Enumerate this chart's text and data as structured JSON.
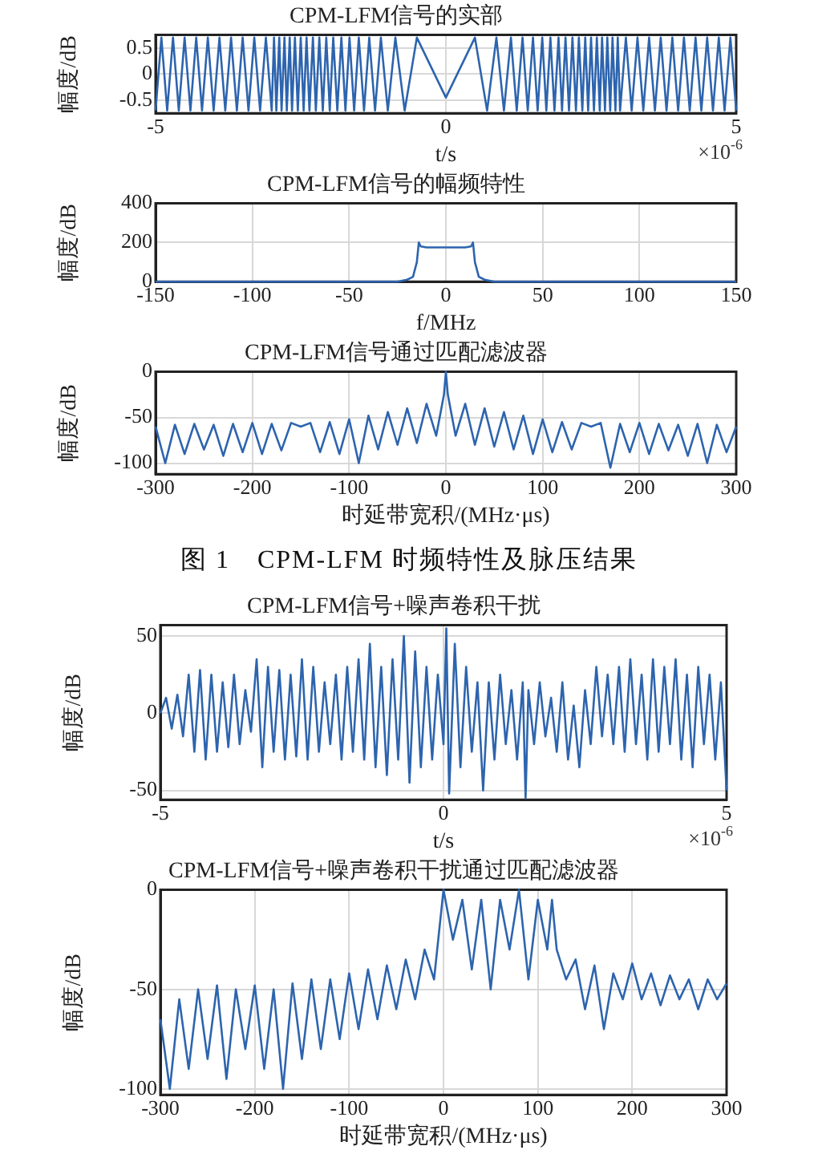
{
  "chart_data": [
    {
      "type": "line",
      "title": "CPM-LFM信号的实部",
      "xlabel": "t/s",
      "ylabel": "幅度/dB",
      "annotations": [
        "×10$^{-6}$"
      ],
      "color": "#2d64ae",
      "grid": true,
      "marker": "none",
      "legend": false,
      "xlim": [
        -5,
        5
      ],
      "xticks": [
        -5,
        0,
        5
      ],
      "ylim": [
        -0.75,
        0.75
      ],
      "yticks": [
        -0.5,
        0,
        0.5
      ],
      "x": [
        -5,
        -4.9,
        -4.8,
        -4.7,
        -4.6,
        -4.5,
        -4.4,
        -4.3,
        -4.2,
        -4.1,
        -4,
        -3.9,
        -3.8,
        -3.7,
        -3.6,
        -3.5,
        -3.4,
        -3.3,
        -3.2,
        -3.1,
        -3,
        -2.96,
        -2.92,
        -2.87,
        -2.83,
        -2.78,
        -2.74,
        -2.69,
        -2.65,
        -2.6,
        -2.55,
        -2.5,
        -2.45,
        -2.4,
        -2.35,
        -2.29,
        -2.24,
        -2.18,
        -2.12,
        -2.06,
        -2,
        -1.94,
        -1.87,
        -1.8,
        -1.73,
        -1.66,
        -1.58,
        -1.5,
        -1.41,
        -1.32,
        -1.22,
        -1.12,
        -1,
        -0.87,
        -0.71,
        -0.5,
        0,
        0.5,
        0.71,
        0.87,
        1,
        1.12,
        1.22,
        1.32,
        1.41,
        1.5,
        1.58,
        1.66,
        1.73,
        1.8,
        1.87,
        1.94,
        2,
        2.06,
        2.12,
        2.18,
        2.24,
        2.29,
        2.35,
        2.4,
        2.45,
        2.5,
        2.55,
        2.6,
        2.65,
        2.69,
        2.74,
        2.78,
        2.83,
        2.87,
        2.92,
        2.96,
        3,
        3.1,
        3.2,
        3.3,
        3.4,
        3.5,
        3.6,
        3.7,
        3.8,
        3.9,
        4,
        4.1,
        4.2,
        4.3,
        4.4,
        4.5,
        4.6,
        4.7,
        4.8,
        4.9,
        5
      ],
      "values": [
        -0.7,
        0.7,
        -0.7,
        0.7,
        -0.7,
        0.7,
        -0.7,
        0.7,
        -0.7,
        0.7,
        -0.7,
        0.7,
        -0.7,
        0.7,
        -0.7,
        0.7,
        -0.7,
        0.7,
        -0.7,
        0.7,
        -0.7,
        0.7,
        -0.7,
        0.7,
        -0.7,
        0.7,
        -0.7,
        0.7,
        -0.7,
        0.7,
        -0.7,
        0.7,
        -0.7,
        0.7,
        -0.7,
        0.7,
        -0.7,
        0.7,
        -0.7,
        0.7,
        -0.7,
        0.7,
        -0.7,
        0.7,
        -0.7,
        0.7,
        -0.7,
        0.7,
        -0.7,
        0.7,
        -0.7,
        0.7,
        -0.7,
        0.7,
        -0.7,
        0.7,
        -0.45,
        0.7,
        -0.7,
        0.7,
        -0.7,
        0.7,
        -0.7,
        0.7,
        -0.7,
        0.7,
        -0.7,
        0.7,
        -0.7,
        0.7,
        -0.7,
        0.7,
        -0.7,
        0.7,
        -0.7,
        0.7,
        -0.7,
        0.7,
        -0.7,
        0.7,
        -0.7,
        0.7,
        -0.7,
        0.7,
        -0.7,
        0.7,
        -0.7,
        0.7,
        -0.7,
        0.7,
        -0.7,
        0.7,
        -0.7,
        0.7,
        -0.7,
        0.7,
        -0.7,
        0.7,
        -0.7,
        0.7,
        -0.7,
        0.7,
        -0.7,
        0.7,
        -0.7,
        0.7,
        -0.7,
        0.7,
        -0.7,
        0.7,
        -0.7,
        0.7,
        -0.7
      ]
    },
    {
      "type": "line",
      "title": "CPM-LFM信号的幅频特性",
      "xlabel": "f/MHz",
      "ylabel": "幅度/dB",
      "color": "#2d64ae",
      "grid": true,
      "marker": "none",
      "legend": false,
      "xlim": [
        -150,
        150
      ],
      "xticks": [
        -150,
        -100,
        -50,
        0,
        50,
        100,
        150
      ],
      "ylim": [
        0,
        400
      ],
      "yticks": [
        0,
        200,
        400
      ],
      "x": [
        -150,
        -25,
        -20,
        -17,
        -15,
        -14,
        -13,
        -10,
        -5,
        0,
        5,
        10,
        13,
        14,
        15,
        17,
        20,
        25,
        150
      ],
      "values": [
        0,
        0,
        10,
        25,
        100,
        200,
        180,
        175,
        175,
        175,
        175,
        175,
        180,
        200,
        100,
        25,
        10,
        0,
        0
      ]
    },
    {
      "type": "line",
      "title": "CPM-LFM信号通过匹配滤波器",
      "xlabel": "时延带宽积/(MHz·μs)",
      "ylabel": "幅度/dB",
      "color": "#2d64ae",
      "grid": true,
      "marker": "none",
      "legend": false,
      "xlim": [
        -300,
        300
      ],
      "xticks": [
        -300,
        -200,
        -100,
        0,
        100,
        200,
        300
      ],
      "ylim": [
        -112,
        0
      ],
      "yticks": [
        -100,
        -50,
        0
      ],
      "x": [
        -300,
        -290,
        -280,
        -270,
        -260,
        -250,
        -240,
        -230,
        -220,
        -210,
        -200,
        -190,
        -180,
        -170,
        -160,
        -150,
        -140,
        -130,
        -120,
        -110,
        -100,
        -90,
        -80,
        -70,
        -60,
        -50,
        -40,
        -30,
        -20,
        -10,
        -2,
        0,
        2,
        10,
        20,
        30,
        40,
        50,
        60,
        70,
        80,
        90,
        100,
        110,
        120,
        130,
        140,
        150,
        160,
        170,
        180,
        190,
        200,
        210,
        220,
        230,
        240,
        250,
        260,
        270,
        280,
        290,
        300
      ],
      "values": [
        -60,
        -100,
        -58,
        -90,
        -57,
        -85,
        -58,
        -92,
        -57,
        -88,
        -56,
        -90,
        -57,
        -86,
        -56,
        -60,
        -56,
        -88,
        -55,
        -90,
        -52,
        -100,
        -48,
        -85,
        -44,
        -80,
        -40,
        -78,
        -35,
        -70,
        -25,
        0,
        -25,
        -70,
        -35,
        -80,
        -40,
        -82,
        -44,
        -85,
        -48,
        -90,
        -52,
        -88,
        -55,
        -85,
        -56,
        -60,
        -56,
        -105,
        -57,
        -88,
        -56,
        -90,
        -57,
        -86,
        -58,
        -92,
        -57,
        -100,
        -58,
        -88,
        -60
      ]
    },
    {
      "type": "other",
      "title": "图 1　CPM-LFM 时频特性及脉压结果"
    },
    {
      "type": "line",
      "title": "CPM-LFM信号+噪声卷积干扰",
      "xlabel": "t/s",
      "ylabel": "幅度/dB",
      "annotations": [
        "×10$^{-6}$"
      ],
      "color": "#2d64ae",
      "grid": true,
      "marker": "none",
      "legend": false,
      "xlim": [
        -5,
        5
      ],
      "xticks": [
        -5,
        0,
        5
      ],
      "ylim": [
        -56,
        57
      ],
      "yticks": [
        -50,
        0,
        50
      ],
      "x": [
        -5,
        -4.9,
        -4.8,
        -4.7,
        -4.6,
        -4.5,
        -4.4,
        -4.3,
        -4.2,
        -4.1,
        -4,
        -3.9,
        -3.8,
        -3.7,
        -3.6,
        -3.5,
        -3.4,
        -3.3,
        -3.2,
        -3.1,
        -3,
        -2.9,
        -2.8,
        -2.7,
        -2.6,
        -2.5,
        -2.4,
        -2.3,
        -2.2,
        -2.1,
        -2,
        -1.9,
        -1.8,
        -1.7,
        -1.6,
        -1.5,
        -1.4,
        -1.3,
        -1.2,
        -1.1,
        -1,
        -0.9,
        -0.8,
        -0.7,
        -0.6,
        -0.5,
        -0.4,
        -0.3,
        -0.2,
        -0.1,
        0,
        0.05,
        0.1,
        0.2,
        0.3,
        0.4,
        0.5,
        0.6,
        0.7,
        0.8,
        0.9,
        1,
        1.1,
        1.2,
        1.3,
        1.4,
        1.45,
        1.5,
        1.6,
        1.7,
        1.8,
        1.9,
        2,
        2.1,
        2.2,
        2.3,
        2.4,
        2.5,
        2.6,
        2.7,
        2.8,
        2.9,
        3,
        3.1,
        3.2,
        3.3,
        3.4,
        3.5,
        3.6,
        3.7,
        3.8,
        3.9,
        4,
        4.1,
        4.2,
        4.3,
        4.4,
        4.5,
        4.6,
        4.7,
        4.8,
        4.9,
        5
      ],
      "values": [
        0,
        10,
        -10,
        12,
        -15,
        25,
        -25,
        28,
        -30,
        25,
        -25,
        20,
        -22,
        25,
        -20,
        15,
        -12,
        35,
        -35,
        30,
        -25,
        28,
        -30,
        25,
        -28,
        35,
        -30,
        30,
        -25,
        20,
        -20,
        25,
        -30,
        30,
        -25,
        35,
        -30,
        45,
        -35,
        30,
        -40,
        35,
        -30,
        50,
        -45,
        40,
        -35,
        30,
        -30,
        25,
        -20,
        55,
        -52,
        45,
        -35,
        30,
        -25,
        20,
        -50,
        20,
        -30,
        25,
        -20,
        15,
        -30,
        20,
        -55,
        15,
        -20,
        20,
        -15,
        10,
        -25,
        20,
        -30,
        5,
        -35,
        15,
        -20,
        30,
        -15,
        25,
        -20,
        30,
        -25,
        35,
        -20,
        25,
        -30,
        35,
        -25,
        30,
        -20,
        35,
        -30,
        25,
        -35,
        30,
        -20,
        25,
        -30,
        20,
        -50
      ]
    },
    {
      "type": "line",
      "title": "CPM-LFM信号+噪声卷积干扰通过匹配滤波器",
      "xlabel": "时延带宽积/(MHz·μs)",
      "ylabel": "幅度/dB",
      "color": "#2d64ae",
      "grid": true,
      "marker": "none",
      "legend": false,
      "xlim": [
        -300,
        300
      ],
      "xticks": [
        -300,
        -200,
        -100,
        0,
        100,
        200,
        300
      ],
      "ylim": [
        -103,
        0
      ],
      "yticks": [
        -100,
        -50,
        0
      ],
      "x": [
        -300,
        -290,
        -280,
        -270,
        -260,
        -250,
        -240,
        -230,
        -220,
        -210,
        -200,
        -190,
        -180,
        -170,
        -160,
        -150,
        -140,
        -130,
        -120,
        -110,
        -100,
        -90,
        -80,
        -70,
        -60,
        -50,
        -40,
        -30,
        -20,
        -10,
        0,
        10,
        20,
        30,
        40,
        50,
        60,
        70,
        80,
        90,
        100,
        110,
        115,
        120,
        130,
        140,
        150,
        160,
        170,
        180,
        190,
        200,
        210,
        220,
        230,
        240,
        250,
        260,
        270,
        280,
        290,
        300
      ],
      "values": [
        -65,
        -100,
        -55,
        -90,
        -50,
        -85,
        -48,
        -95,
        -50,
        -80,
        -48,
        -90,
        -50,
        -100,
        -47,
        -85,
        -45,
        -80,
        -45,
        -75,
        -42,
        -70,
        -40,
        -65,
        -38,
        -60,
        -35,
        -55,
        -30,
        -45,
        0,
        -25,
        -5,
        -40,
        -5,
        -50,
        -5,
        -30,
        0,
        -45,
        -5,
        -30,
        -5,
        -30,
        -45,
        -35,
        -60,
        -38,
        -70,
        -42,
        -55,
        -37,
        -55,
        -42,
        -58,
        -43,
        -55,
        -45,
        -60,
        -45,
        -55,
        -47
      ]
    }
  ]
}
